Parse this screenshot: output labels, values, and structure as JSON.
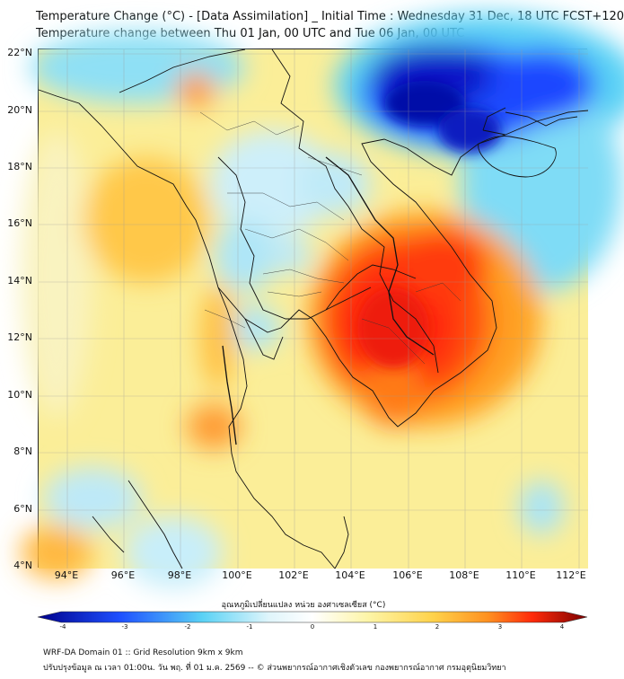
{
  "title": {
    "line1": "Temperature Change (°C) - [Data Assimilation] _ Initial Time : Wednesday 31 Dec, 18 UTC FCST+120",
    "line2": "Temperature change between Thu 01 Jan, 00 UTC and Tue 06 Jan, 00 UTC"
  },
  "axes": {
    "lat_labels": [
      "22°N",
      "20°N",
      "18°N",
      "16°N",
      "14°N",
      "12°N",
      "10°N",
      "8°N",
      "6°N",
      "4°N"
    ],
    "lon_labels": [
      "94°E",
      "96°E",
      "98°E",
      "100°E",
      "102°E",
      "104°E",
      "106°E",
      "108°E",
      "110°E",
      "112°E"
    ],
    "lat_values": [
      22,
      20,
      18,
      16,
      14,
      12,
      10,
      8,
      6,
      4
    ],
    "lon_values": [
      94,
      96,
      98,
      100,
      102,
      104,
      106,
      108,
      110,
      112
    ],
    "lon_range": [
      93,
      112.3
    ],
    "lat_range": [
      4,
      22.3
    ]
  },
  "colorbar": {
    "title": "อุณหภูมิเปลี่ยนแปลง หน่วย องศาเซลเซียส (°C)",
    "ticks": [
      "-4",
      "-3",
      "-2",
      "-1",
      "0",
      "1",
      "2",
      "3",
      "4"
    ],
    "range": [
      -4,
      4
    ],
    "colors": {
      "cold_max": "#00008b",
      "cold": "#1e50ff",
      "cool": "#5ad2f5",
      "pale": "#dff5fb",
      "neutral": "#ffffff",
      "warm_pale": "#fdf5a8",
      "warm": "#ffd24a",
      "orange": "#ff9020",
      "hot": "#ff2a0a",
      "hot_max": "#7a0000"
    }
  },
  "footer": {
    "line1": "WRF-DA Domain 01 :: Grid Resolution 9km x 9km",
    "line2": "ปรับปรุงข้อมูล ณ เวลา 01:00น. วัน พฤ. ที่ 01 ม.ค. 2569 -- © ส่วนพยากรณ์อากาศเชิงตัวเลข กองพยากรณ์อากาศ กรมอุตุนิยมวิทยา"
  }
}
